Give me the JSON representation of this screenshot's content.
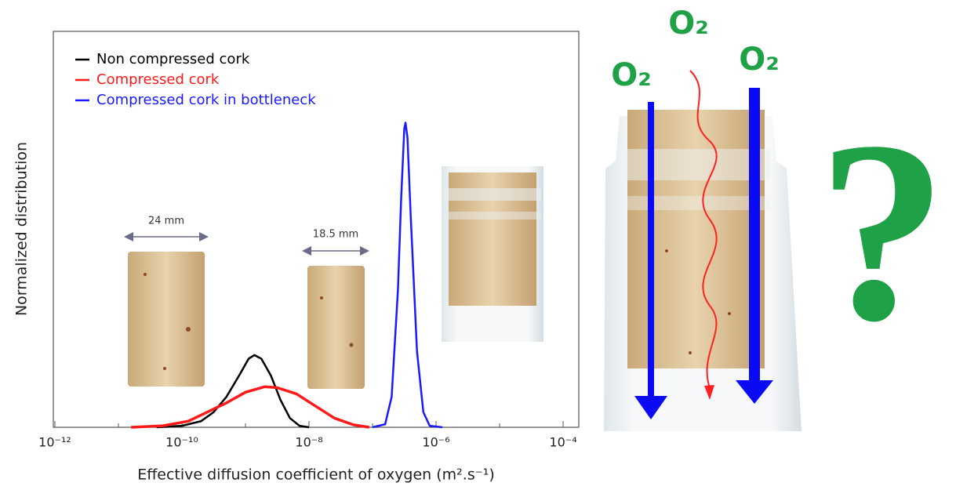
{
  "chart_data": {
    "type": "line",
    "x_label": "Effective diffusion coefficient of oxygen (m².s⁻¹)",
    "y_label": "Normalized distribution",
    "log_x": true,
    "xlim": [
      1e-12,
      0.0001
    ],
    "xticks": [
      {
        "value": 1e-12,
        "label": "10⁻¹²"
      },
      {
        "value": 1e-10,
        "label": "10⁻¹⁰"
      },
      {
        "value": 1e-08,
        "label": "10⁻⁸"
      },
      {
        "value": 1e-06,
        "label": "10⁻⁶"
      },
      {
        "value": 0.0001,
        "label": "10⁻⁴"
      }
    ],
    "xminor_ticks": [
      1e-11,
      1e-09,
      1e-07,
      1e-05
    ],
    "ylim": [
      0,
      1.3
    ],
    "legend": "upper left",
    "series": [
      {
        "name": "Non compressed cork",
        "color": "#000000",
        "x": [
          3.98e-11,
          1e-10,
          2e-10,
          3.16e-10,
          5.01e-10,
          7.94e-10,
          1.12e-09,
          1.38e-09,
          1.78e-09,
          2.51e-09,
          3.55e-09,
          5.01e-09,
          7.08e-09,
          1e-08
        ],
        "values": [
          0,
          0.005,
          0.02,
          0.05,
          0.1,
          0.17,
          0.225,
          0.237,
          0.225,
          0.17,
          0.09,
          0.03,
          0.005,
          0
        ]
      },
      {
        "name": "Compressed cork",
        "color": "#ff1a1a",
        "x": [
          1.58e-11,
          5.01e-11,
          1.26e-10,
          2.51e-10,
          5.01e-10,
          1e-09,
          2e-09,
          3.16e-09,
          6.31e-09,
          1.26e-08,
          2.51e-08,
          5.01e-08,
          8.91e-08
        ],
        "values": [
          0,
          0.005,
          0.02,
          0.05,
          0.08,
          0.115,
          0.133,
          0.13,
          0.11,
          0.07,
          0.03,
          0.008,
          0
        ]
      },
      {
        "name": "Compressed cork in bottleneck",
        "color": "#1a1aff",
        "x": [
          1e-07,
          1.58e-07,
          2e-07,
          2.51e-07,
          2.82e-07,
          3.16e-07,
          3.31e-07,
          3.55e-07,
          3.98e-07,
          5.01e-07,
          6.31e-07,
          7.94e-07,
          1.26e-06
        ],
        "values": [
          0,
          0.01,
          0.1,
          0.45,
          0.75,
          0.98,
          1.0,
          0.95,
          0.7,
          0.25,
          0.05,
          0.005,
          0
        ]
      }
    ],
    "annotations": [
      "24 mm",
      "18.5 mm"
    ]
  },
  "illustration": {
    "oxygen_labels": [
      "O₂",
      "O₂",
      "O₂"
    ],
    "question": "?"
  }
}
